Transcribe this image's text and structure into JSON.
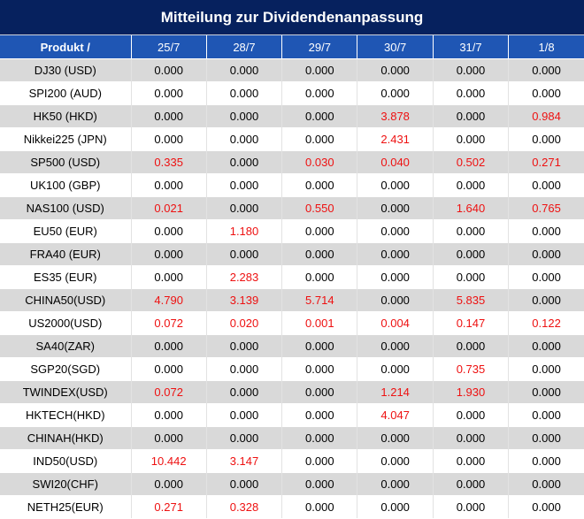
{
  "title": "Mitteilung zur Dividendenanpassung",
  "header": {
    "product": "Produkt /",
    "dates": [
      "25/7",
      "28/7",
      "29/7",
      "30/7",
      "31/7",
      "1/8"
    ]
  },
  "colors": {
    "title_bg": "#06215e",
    "header_bg": "#1f56b4",
    "highlight": "#ee1111"
  },
  "rows": [
    {
      "product": "DJ30 (USD)",
      "values": [
        "0.000",
        "0.000",
        "0.000",
        "0.000",
        "0.000",
        "0.000"
      ]
    },
    {
      "product": "SPI200 (AUD)",
      "values": [
        "0.000",
        "0.000",
        "0.000",
        "0.000",
        "0.000",
        "0.000"
      ]
    },
    {
      "product": "HK50 (HKD)",
      "values": [
        "0.000",
        "0.000",
        "0.000",
        "3.878",
        "0.000",
        "0.984"
      ]
    },
    {
      "product": "Nikkei225 (JPN)",
      "values": [
        "0.000",
        "0.000",
        "0.000",
        "2.431",
        "0.000",
        "0.000"
      ]
    },
    {
      "product": "SP500 (USD)",
      "values": [
        "0.335",
        "0.000",
        "0.030",
        "0.040",
        "0.502",
        "0.271"
      ]
    },
    {
      "product": "UK100 (GBP)",
      "values": [
        "0.000",
        "0.000",
        "0.000",
        "0.000",
        "0.000",
        "0.000"
      ]
    },
    {
      "product": "NAS100 (USD)",
      "values": [
        "0.021",
        "0.000",
        "0.550",
        "0.000",
        "1.640",
        "0.765"
      ]
    },
    {
      "product": "EU50 (EUR)",
      "values": [
        "0.000",
        "1.180",
        "0.000",
        "0.000",
        "0.000",
        "0.000"
      ]
    },
    {
      "product": "FRA40 (EUR)",
      "values": [
        "0.000",
        "0.000",
        "0.000",
        "0.000",
        "0.000",
        "0.000"
      ]
    },
    {
      "product": "ES35 (EUR)",
      "values": [
        "0.000",
        "2.283",
        "0.000",
        "0.000",
        "0.000",
        "0.000"
      ]
    },
    {
      "product": "CHINA50(USD)",
      "values": [
        "4.790",
        "3.139",
        "5.714",
        "0.000",
        "5.835",
        "0.000"
      ]
    },
    {
      "product": "US2000(USD)",
      "values": [
        "0.072",
        "0.020",
        "0.001",
        "0.004",
        "0.147",
        "0.122"
      ]
    },
    {
      "product": "SA40(ZAR)",
      "values": [
        "0.000",
        "0.000",
        "0.000",
        "0.000",
        "0.000",
        "0.000"
      ]
    },
    {
      "product": "SGP20(SGD)",
      "values": [
        "0.000",
        "0.000",
        "0.000",
        "0.000",
        "0.735",
        "0.000"
      ]
    },
    {
      "product": "TWINDEX(USD)",
      "values": [
        "0.072",
        "0.000",
        "0.000",
        "1.214",
        "1.930",
        "0.000"
      ]
    },
    {
      "product": "HKTECH(HKD)",
      "values": [
        "0.000",
        "0.000",
        "0.000",
        "4.047",
        "0.000",
        "0.000"
      ]
    },
    {
      "product": "CHINAH(HKD)",
      "values": [
        "0.000",
        "0.000",
        "0.000",
        "0.000",
        "0.000",
        "0.000"
      ]
    },
    {
      "product": "IND50(USD)",
      "values": [
        "10.442",
        "3.147",
        "0.000",
        "0.000",
        "0.000",
        "0.000"
      ]
    },
    {
      "product": "SWI20(CHF)",
      "values": [
        "0.000",
        "0.000",
        "0.000",
        "0.000",
        "0.000",
        "0.000"
      ]
    },
    {
      "product": "NETH25(EUR)",
      "values": [
        "0.271",
        "0.328",
        "0.000",
        "0.000",
        "0.000",
        "0.000"
      ]
    }
  ]
}
